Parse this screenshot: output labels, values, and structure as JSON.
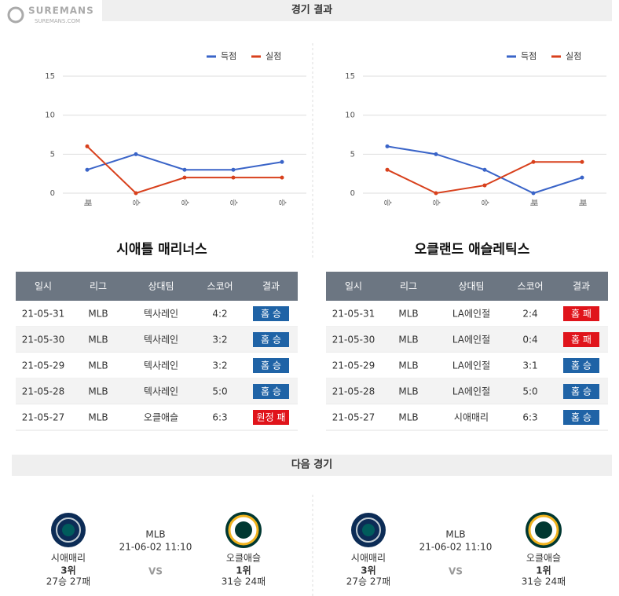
{
  "logo": {
    "name": "SUREMANS",
    "url": "SUREMANS.COM"
  },
  "sections": {
    "results": "경기 결과",
    "next": "다음 경기"
  },
  "chart_data": [
    {
      "type": "line",
      "categories": [
        "패",
        "승",
        "승",
        "승",
        "승"
      ],
      "series": [
        {
          "name": "득점",
          "color": "#3a64c8",
          "values": [
            3,
            5,
            3,
            3,
            4
          ]
        },
        {
          "name": "실점",
          "color": "#d8401c",
          "values": [
            6,
            0,
            2,
            2,
            2
          ]
        }
      ],
      "ylim": [
        0,
        15
      ],
      "yticks": [
        0,
        5,
        10,
        15
      ],
      "grid": true,
      "legend": "top-right"
    },
    {
      "type": "line",
      "categories": [
        "승",
        "승",
        "승",
        "패",
        "패"
      ],
      "series": [
        {
          "name": "득점",
          "color": "#3a64c8",
          "values": [
            6,
            5,
            3,
            0,
            2
          ]
        },
        {
          "name": "실점",
          "color": "#d8401c",
          "values": [
            3,
            0,
            1,
            4,
            4
          ]
        }
      ],
      "ylim": [
        0,
        15
      ],
      "yticks": [
        0,
        5,
        10,
        15
      ],
      "grid": true,
      "legend": "top-right"
    }
  ],
  "table_columns": [
    "일시",
    "리그",
    "상대팀",
    "스코어",
    "결과"
  ],
  "teams": [
    {
      "name": "시애틀 매리너스",
      "rows": [
        [
          "21-05-31",
          "MLB",
          "텍사레인",
          "4:2",
          "홈 승"
        ],
        [
          "21-05-30",
          "MLB",
          "텍사레인",
          "3:2",
          "홈 승"
        ],
        [
          "21-05-29",
          "MLB",
          "텍사레인",
          "3:2",
          "홈 승"
        ],
        [
          "21-05-28",
          "MLB",
          "텍사레인",
          "5:0",
          "홈 승"
        ],
        [
          "21-05-27",
          "MLB",
          "오클애슬",
          "6:3",
          "원정 패"
        ]
      ],
      "result_colors": [
        "#1f63a6",
        "#1f63a6",
        "#1f63a6",
        "#1f63a6",
        "#e0141b"
      ]
    },
    {
      "name": "오클랜드 애슬레틱스",
      "rows": [
        [
          "21-05-31",
          "MLB",
          "LA에인절",
          "2:4",
          "홈 패"
        ],
        [
          "21-05-30",
          "MLB",
          "LA에인절",
          "0:4",
          "홈 패"
        ],
        [
          "21-05-29",
          "MLB",
          "LA에인절",
          "3:1",
          "홈 승"
        ],
        [
          "21-05-28",
          "MLB",
          "LA에인절",
          "5:0",
          "홈 승"
        ],
        [
          "21-05-27",
          "MLB",
          "시애매리",
          "6:3",
          "홈 승"
        ]
      ],
      "result_colors": [
        "#e0141b",
        "#e0141b",
        "#1f63a6",
        "#1f63a6",
        "#1f63a6"
      ]
    }
  ],
  "next_games": [
    {
      "league": "MLB",
      "datetime": "21-06-02 11:10",
      "vs": "VS",
      "home": {
        "name": "시애매리",
        "rank": "3위",
        "record": "27승 27패"
      },
      "away": {
        "name": "오클애슬",
        "rank": "1위",
        "record": "31승 24패"
      }
    },
    {
      "league": "MLB",
      "datetime": "21-06-02 11:10",
      "vs": "VS",
      "home": {
        "name": "시애매리",
        "rank": "3위",
        "record": "27승 27패"
      },
      "away": {
        "name": "오클애슬",
        "rank": "1위",
        "record": "31승 24패"
      }
    }
  ]
}
